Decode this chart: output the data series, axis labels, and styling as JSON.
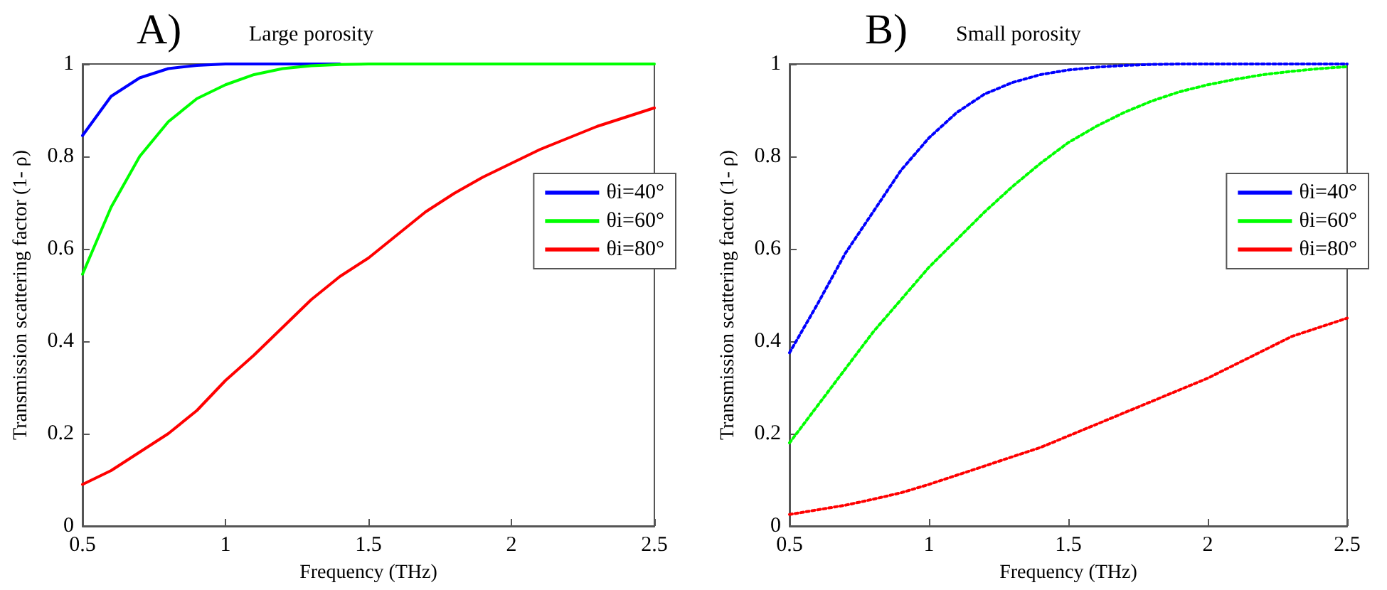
{
  "chart_data": [
    {
      "type": "line",
      "title": "Large porosity",
      "annotations": [
        "A)"
      ],
      "xlabel": "Frequency (THz)",
      "ylabel": "Transmission scattering factor (1- ρ)",
      "x": [
        0.5,
        0.6,
        0.7,
        0.8,
        0.9,
        1.0,
        1.1,
        1.2,
        1.3,
        1.4,
        1.5,
        1.6,
        1.7,
        1.8,
        1.9,
        2.0,
        2.1,
        2.2,
        2.3,
        2.4,
        2.5
      ],
      "series": [
        {
          "name": "θi=40°",
          "color": "#0000ff",
          "values": [
            0.845,
            0.93,
            0.97,
            0.99,
            0.997,
            1,
            1,
            1,
            1,
            1,
            null,
            null,
            null,
            null,
            null,
            null,
            null,
            null,
            null,
            null,
            null
          ]
        },
        {
          "name": "θi=60°",
          "color": "#00ff00",
          "values": [
            0.545,
            0.69,
            0.8,
            0.875,
            0.925,
            0.955,
            0.977,
            0.99,
            0.996,
            0.999,
            1,
            1,
            1,
            1,
            1,
            1,
            1,
            1,
            1,
            1,
            1
          ]
        },
        {
          "name": "θi=80°",
          "color": "#ff0000",
          "values": [
            0.09,
            0.12,
            0.16,
            0.2,
            0.25,
            0.315,
            0.37,
            0.43,
            0.49,
            0.54,
            0.58,
            0.63,
            0.68,
            0.72,
            0.755,
            0.785,
            0.815,
            0.84,
            0.865,
            0.885,
            0.905
          ]
        }
      ],
      "xlim": [
        0.5,
        2.5
      ],
      "xticks": [
        0.5,
        1,
        1.5,
        2,
        2.5
      ],
      "ylim": [
        0,
        1
      ],
      "yticks": [
        0,
        0.2,
        0.4,
        0.6,
        0.8,
        1
      ],
      "grid": false,
      "legend": "right",
      "marker": "none",
      "line_style": "solid"
    },
    {
      "type": "line",
      "title": "Small porosity",
      "annotations": [
        "B)"
      ],
      "xlabel": "Frequency (THz)",
      "ylabel": "Transmission scattering factor (1- ρ)",
      "x": [
        0.5,
        0.6,
        0.7,
        0.8,
        0.9,
        1.0,
        1.1,
        1.2,
        1.3,
        1.4,
        1.5,
        1.6,
        1.7,
        1.8,
        1.9,
        2.0,
        2.1,
        2.2,
        2.3,
        2.4,
        2.5
      ],
      "series": [
        {
          "name": "θi=40°",
          "color": "#0000ff",
          "values": [
            0.375,
            0.48,
            0.59,
            0.68,
            0.77,
            0.84,
            0.895,
            0.935,
            0.96,
            0.977,
            0.987,
            0.993,
            0.997,
            0.999,
            1,
            1,
            1,
            1,
            1,
            1,
            1
          ]
        },
        {
          "name": "θi=60°",
          "color": "#00ff00",
          "values": [
            0.18,
            0.26,
            0.34,
            0.42,
            0.49,
            0.56,
            0.62,
            0.68,
            0.735,
            0.785,
            0.83,
            0.865,
            0.895,
            0.92,
            0.94,
            0.955,
            0.967,
            0.977,
            0.984,
            0.99,
            0.994
          ]
        },
        {
          "name": "θi=80°",
          "color": "#ff0000",
          "values": [
            0.025,
            0.035,
            0.045,
            0.058,
            0.072,
            0.09,
            0.11,
            0.13,
            0.15,
            0.17,
            0.195,
            0.22,
            0.245,
            0.27,
            0.295,
            0.32,
            0.35,
            0.38,
            0.41,
            0.43,
            0.45
          ]
        }
      ],
      "xlim": [
        0.5,
        2.5
      ],
      "xticks": [
        0.5,
        1,
        1.5,
        2,
        2.5
      ],
      "ylim": [
        0,
        1
      ],
      "yticks": [
        0,
        0.2,
        0.4,
        0.6,
        0.8,
        1
      ],
      "grid": false,
      "legend": "right",
      "marker": "none",
      "line_style": "dotted"
    }
  ]
}
